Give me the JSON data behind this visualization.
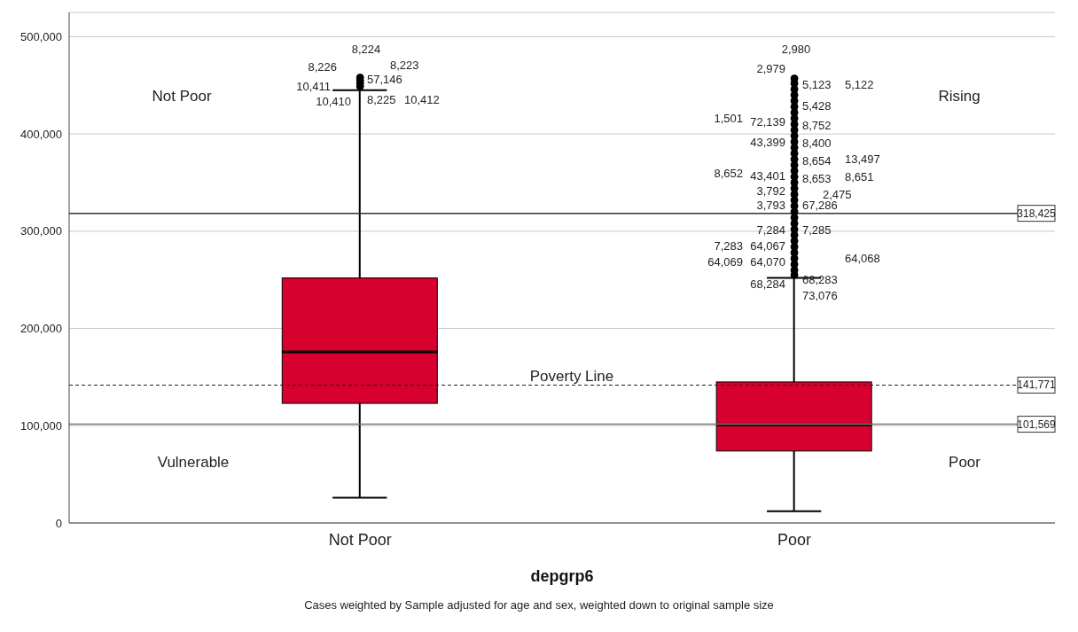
{
  "chart_data": {
    "type": "box",
    "xlabel": "depgrp6",
    "categories": [
      "Not Poor",
      "Poor"
    ],
    "series": [
      {
        "color": "#d7002f",
        "boxes": [
          {
            "low": 26000,
            "q1": 123000,
            "median": 176000,
            "q3": 252000,
            "high": 445000,
            "outliers": [
              449000,
              452000,
              455000,
              458000
            ]
          },
          {
            "low": 12000,
            "q1": 74000,
            "median": 101000,
            "q3": 145000,
            "high": 252000,
            "outliers": [
              255000,
              260000,
              266000,
              272000,
              278000,
              284000,
              290000,
              296000,
              302000,
              308000,
              314000,
              320000,
              326000,
              332000,
              338000,
              344000,
              350000,
              356000,
              362000,
              368000,
              374000,
              380000,
              386000,
              392000,
              398000,
              404000,
              410000,
              416000,
              422000,
              428000,
              434000,
              440000,
              446000,
              452000,
              457000
            ]
          }
        ]
      }
    ],
    "ylim": [
      0,
      525000
    ],
    "yticks": [
      0,
      {
        "value": 100000,
        "label": "100,000"
      },
      {
        "value": 200000,
        "label": "200,000"
      },
      {
        "value": 300000,
        "label": "300,000"
      },
      {
        "value": 400000,
        "label": "400,000"
      },
      {
        "value": 500000,
        "label": "500,000"
      }
    ],
    "grid": "y",
    "ref_lines": [
      {
        "axis": "y",
        "value": 318425,
        "label": "318,425",
        "color": "#333333",
        "line_style": "solid"
      },
      {
        "axis": "y",
        "value": 141771,
        "label": "141,771",
        "color": "#222222",
        "line_style": "dashed"
      },
      {
        "axis": "y",
        "value": 101569,
        "label": "101,569",
        "color": "#777777",
        "line_style": "solid"
      }
    ],
    "annotations": [
      "Not Poor",
      "Rising",
      "Vulnerable",
      "Poor",
      "Poverty Line",
      "Cases weighted by Sample adjusted for age and sex, weighted down to original sample size",
      "8,224",
      "8,223",
      "8,226",
      "57,146",
      "10,411",
      "8,225",
      "10,410",
      "10,412",
      "2,979",
      "5,123",
      "1,501",
      "5,122",
      "72,139",
      "5,428",
      "43,399",
      "8,752",
      "8,652",
      "8,400",
      "43,401",
      "8,654",
      "3,792",
      "13,497",
      "3,793",
      "8,653",
      "7,284",
      "8,651",
      "7,283",
      "2,475",
      "64,067",
      "67,286",
      "64,069",
      "7,285",
      "64,070",
      "64,068",
      "68,284",
      "68,283",
      "2,980",
      "73,076"
    ]
  }
}
